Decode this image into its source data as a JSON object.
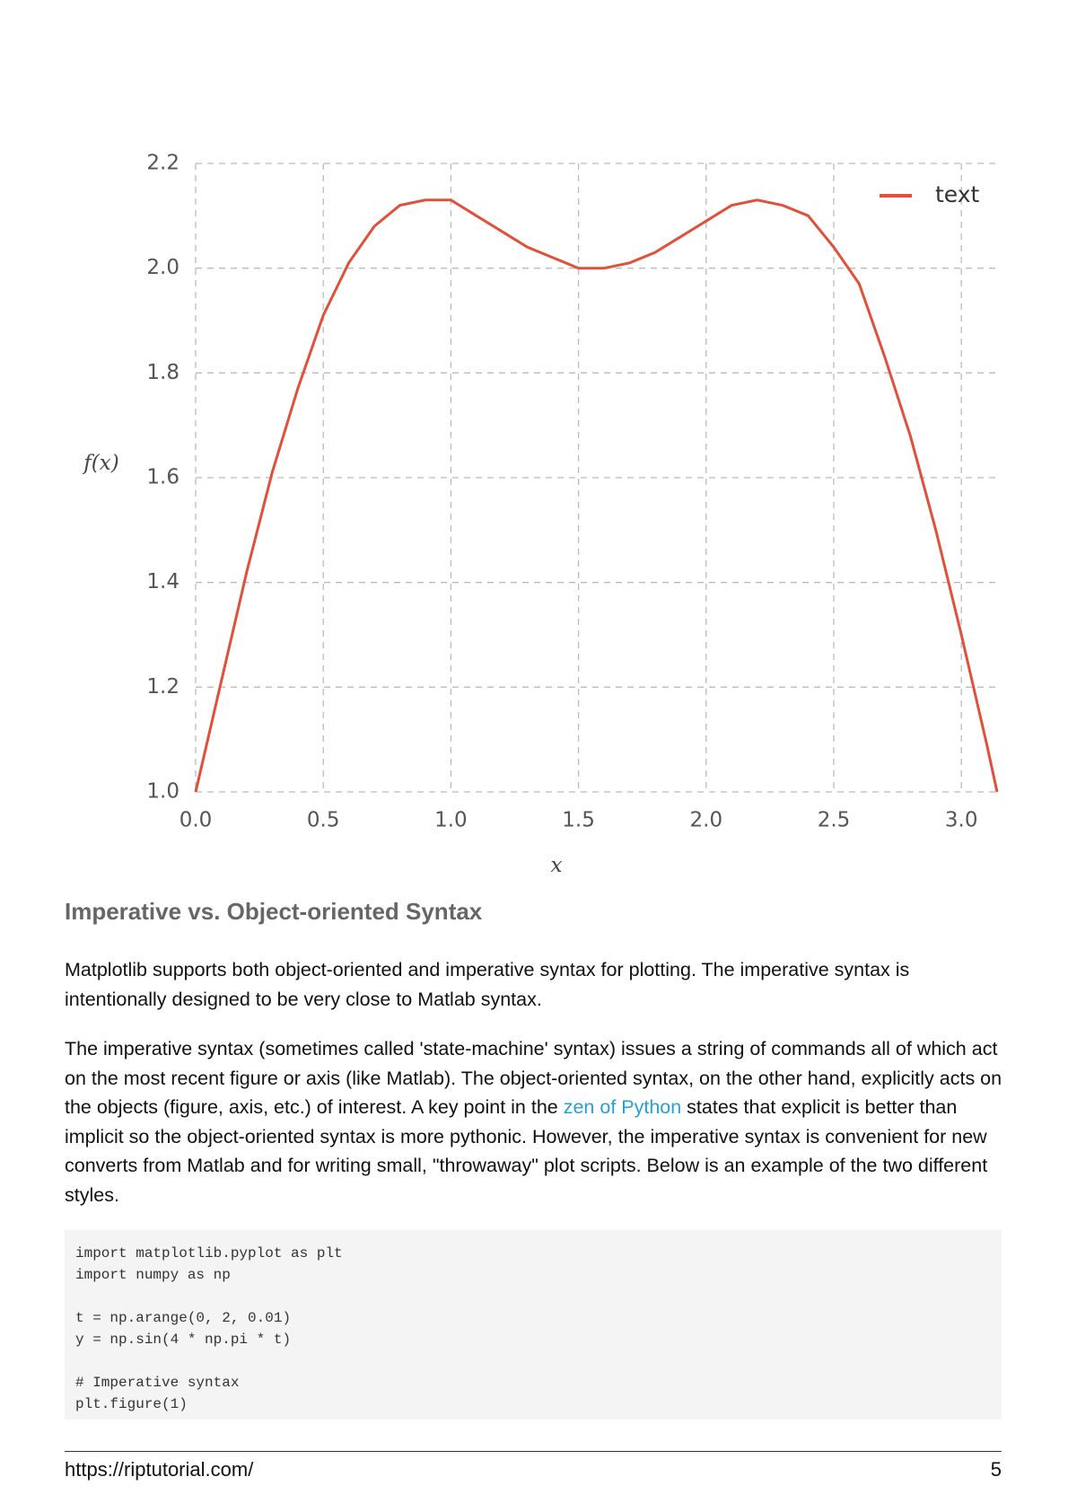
{
  "chart_data": {
    "type": "line",
    "xlabel": "x",
    "ylabel": "f(x)",
    "x": [
      0,
      0.1,
      0.2,
      0.3,
      0.4,
      0.5,
      0.6,
      0.7,
      0.8,
      0.9,
      1.0,
      1.1,
      1.2,
      1.3,
      1.4,
      1.5,
      1.6,
      1.7,
      1.8,
      1.9,
      2.0,
      2.1,
      2.2,
      2.3,
      2.4,
      2.5,
      2.6,
      2.7,
      2.8,
      2.9,
      3.0,
      3.1,
      3.14
    ],
    "series": [
      {
        "name": "text",
        "color": "#e0503a",
        "values": [
          1,
          1.21,
          1.42,
          1.61,
          1.77,
          1.91,
          2.01,
          2.08,
          2.12,
          2.13,
          2.13,
          2.1,
          2.07,
          2.04,
          2.02,
          2.0,
          2.0,
          2.01,
          2.03,
          2.06,
          2.09,
          2.12,
          2.13,
          2.12,
          2.1,
          2.04,
          1.97,
          1.83,
          1.68,
          1.5,
          1.3,
          1.09,
          1.0
        ]
      }
    ],
    "xlim": [
      0,
      3.14
    ],
    "ylim": [
      1,
      2.2
    ],
    "xticks": [
      {
        "value": 0,
        "label": "0.0"
      },
      0.5,
      {
        "value": 1,
        "label": "1.0"
      },
      1.5,
      {
        "value": 2,
        "label": "2.0"
      },
      2.5,
      {
        "value": 3,
        "label": "3.0"
      }
    ],
    "yticks": [
      {
        "value": 1,
        "label": "1.0"
      },
      1.2,
      1.4,
      1.6,
      1.8,
      {
        "value": 2,
        "label": "2.0"
      },
      2.2
    ],
    "grid": true,
    "legend": "upper right"
  },
  "heading": "Imperative vs. Object-oriented Syntax",
  "paragraphs": [
    {
      "before": "Matplotlib supports both object-oriented and imperative syntax for plotting. The imperative syntax is intentionally designed to be very close to Matlab syntax."
    },
    {
      "before": "The imperative syntax (sometimes called 'state-machine' syntax) issues a string of commands all of which act on the most recent figure or axis (like Matlab). The object-oriented syntax, on the other hand, explicitly acts on the objects (figure, axis, etc.) of interest. A key point in the ",
      "link": "zen of Python",
      "after": " states that explicit is better than implicit so the object-oriented syntax is more pythonic. However, the imperative syntax is convenient for new converts from Matlab and for writing small, \"throwaway\" plot scripts. Below is an example of the two different styles."
    }
  ],
  "code": [
    [
      "import matplotlib.pyplot as plt",
      "import numpy as np"
    ],
    [
      "t = np.arange(0, 2, 0.01)",
      "y = np.sin(4 * np.pi * t)"
    ],
    [
      "# Imperative syntax",
      "plt.figure(1)"
    ]
  ],
  "footer": {
    "url": "https://riptutorial.com/",
    "page": "5"
  }
}
